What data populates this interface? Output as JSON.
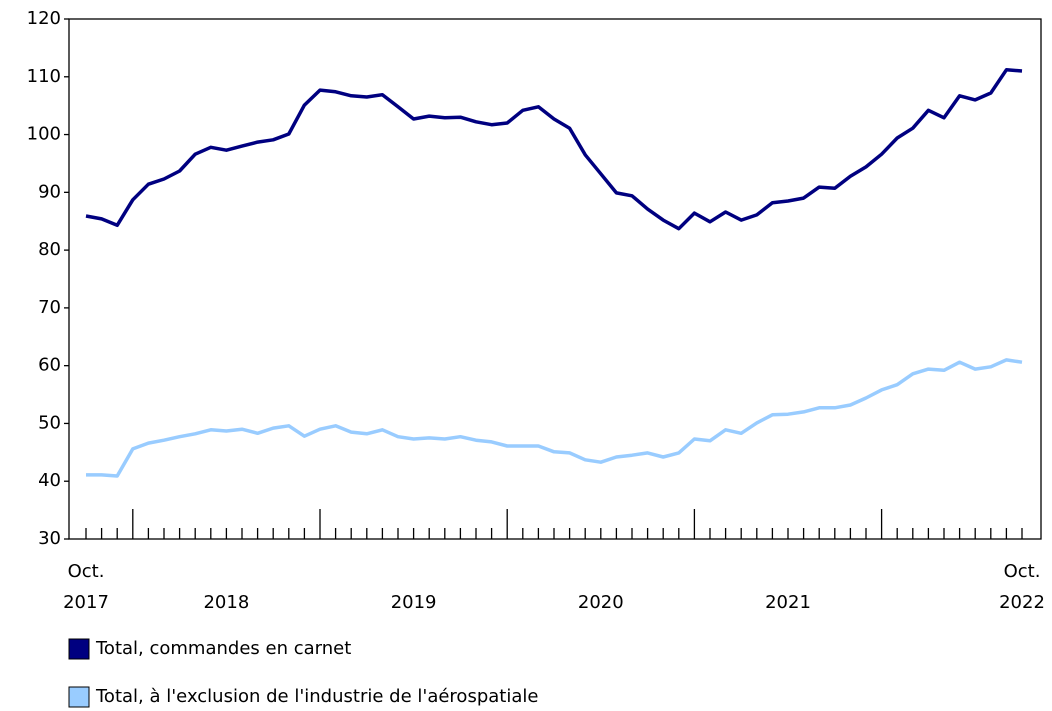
{
  "chart_data": {
    "type": "line",
    "categories": [
      "Oct.\n2017",
      null,
      null,
      null,
      null,
      null,
      null,
      null,
      null,
      "2018",
      null,
      null,
      null,
      null,
      null,
      null,
      null,
      null,
      null,
      null,
      null,
      "2019",
      null,
      null,
      null,
      null,
      null,
      null,
      null,
      null,
      null,
      null,
      null,
      "2020",
      null,
      null,
      null,
      null,
      null,
      null,
      null,
      null,
      null,
      null,
      null,
      "2021",
      null,
      null,
      null,
      null,
      null,
      null,
      null,
      null,
      null,
      null,
      null,
      null,
      null,
      null,
      "Oct.\n2022"
    ],
    "series": [
      {
        "name": "Total, commandes en carnet",
        "color": "#000080",
        "values": [
          85.9,
          85.4,
          84.3,
          88.7,
          91.4,
          92.3,
          93.7,
          96.6,
          97.8,
          97.3,
          98.0,
          98.7,
          99.1,
          100.1,
          105.1,
          107.7,
          107.4,
          106.7,
          106.5,
          106.9,
          104.8,
          102.7,
          103.2,
          102.9,
          103.0,
          102.2,
          101.7,
          102.0,
          104.2,
          104.8,
          102.7,
          101.1,
          96.5,
          93.2,
          89.9,
          89.4,
          87.1,
          85.2,
          83.7,
          86.4,
          84.9,
          86.6,
          85.2,
          86.1,
          88.2,
          88.5,
          89.0,
          90.9,
          90.7,
          92.8,
          94.4,
          96.6,
          99.4,
          101.1,
          104.2,
          102.9,
          106.7,
          106.0,
          107.2,
          111.2,
          111.0
        ]
      },
      {
        "name": "Total, à l'exclusion de l'industrie de l'aérospatiale",
        "color": "#99ccff",
        "values": [
          41.1,
          41.1,
          40.9,
          45.6,
          46.6,
          47.1,
          47.7,
          48.2,
          48.9,
          48.7,
          49.0,
          48.3,
          49.2,
          49.6,
          47.8,
          49.0,
          49.6,
          48.5,
          48.2,
          48.9,
          47.7,
          47.3,
          47.5,
          47.3,
          47.7,
          47.1,
          46.8,
          46.1,
          46.1,
          46.1,
          45.1,
          44.9,
          43.7,
          43.3,
          44.2,
          44.5,
          44.9,
          44.2,
          44.9,
          47.3,
          47.0,
          48.9,
          48.3,
          50.1,
          51.5,
          51.6,
          52.0,
          52.7,
          52.7,
          53.2,
          54.4,
          55.8,
          56.7,
          58.6,
          59.4,
          59.2,
          60.6,
          59.4,
          59.8,
          61.0,
          60.6
        ]
      }
    ],
    "ylim": [
      30,
      120
    ],
    "yticks": [
      30,
      40,
      50,
      60,
      70,
      80,
      90,
      100,
      110,
      120
    ],
    "grid": false
  }
}
